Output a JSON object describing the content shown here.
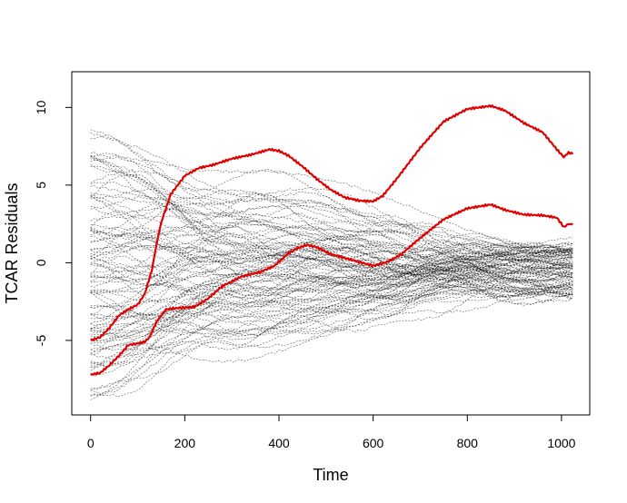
{
  "chart_data": {
    "type": "line",
    "title": "",
    "xlabel": "Time",
    "ylabel": "TCAR Residuals",
    "xlim": [
      -40,
      1060
    ],
    "ylim": [
      -9.8,
      12.3
    ],
    "x_ticks": [
      0,
      200,
      400,
      600,
      800,
      1000
    ],
    "y_ticks": [
      -5,
      0,
      5,
      10
    ],
    "grid": false,
    "legend": "none",
    "background_series": {
      "description_count": 100,
      "x_range": [
        0,
        1024
      ],
      "color": "#000000",
      "style": "dotted",
      "start_range": [
        -9,
        8.2
      ],
      "end_range": [
        -2.3,
        1.2
      ]
    },
    "series": [
      {
        "color": "#e00000",
        "x": [
          0,
          20,
          40,
          60,
          80,
          100,
          115,
          130,
          140,
          150,
          170,
          200,
          230,
          260,
          300,
          340,
          380,
          400,
          420,
          450,
          480,
          510,
          540,
          570,
          600,
          620,
          650,
          700,
          750,
          800,
          850,
          880,
          920,
          960,
          990,
          1005,
          1015,
          1024
        ],
        "y": [
          -5.0,
          -4.8,
          -4.2,
          -3.4,
          -3.0,
          -2.7,
          -2.0,
          -0.5,
          1.2,
          2.6,
          4.4,
          5.6,
          6.1,
          6.3,
          6.7,
          6.95,
          7.3,
          7.2,
          6.9,
          6.2,
          5.4,
          4.7,
          4.2,
          4.0,
          3.95,
          4.3,
          5.4,
          7.4,
          9.1,
          9.9,
          10.1,
          9.8,
          9.0,
          8.4,
          7.3,
          6.8,
          7.1,
          7.0
        ]
      },
      {
        "color": "#e00000",
        "x": [
          0,
          20,
          40,
          60,
          80,
          100,
          115,
          125,
          140,
          160,
          190,
          220,
          250,
          280,
          320,
          360,
          390,
          420,
          440,
          460,
          480,
          510,
          540,
          570,
          600,
          630,
          660,
          700,
          750,
          800,
          850,
          880,
          920,
          960,
          990,
          1005,
          1015,
          1024
        ],
        "y": [
          -7.2,
          -7.1,
          -6.6,
          -6.0,
          -5.3,
          -5.2,
          -5.1,
          -4.8,
          -3.8,
          -3.0,
          -2.9,
          -2.85,
          -2.3,
          -1.5,
          -0.9,
          -0.6,
          -0.2,
          0.6,
          0.95,
          1.15,
          1.0,
          0.55,
          0.3,
          0.05,
          -0.2,
          0.05,
          0.55,
          1.6,
          2.8,
          3.5,
          3.75,
          3.4,
          3.1,
          3.05,
          2.9,
          2.3,
          2.5,
          2.45
        ]
      }
    ]
  }
}
